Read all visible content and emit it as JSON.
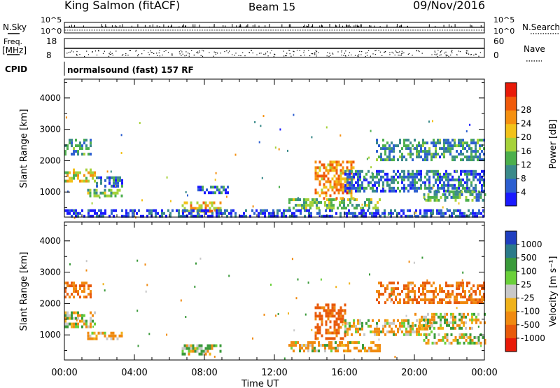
{
  "header": {
    "station": "King Salmon (fitACF)",
    "beam": "Beam 15",
    "date": "09/Nov/2016"
  },
  "strip": {
    "nsky_label": "N.Sky",
    "nsearch_label": "N.Search",
    "noise_ticks_top": "10^5",
    "noise_ticks_bottom": "10^0",
    "freq_label": "Freq.",
    "freq_unit": "[MHz]",
    "freq_ticks": [
      "18",
      "8"
    ],
    "nave_label": "Nave",
    "nave_ticks": [
      "60",
      "0"
    ],
    "cpid_label": "CPID",
    "cpid_text": "normalsound (fast) 157 RF"
  },
  "chart_data": [
    {
      "type": "heatmap",
      "title": "",
      "quantity": "Power",
      "xlabel": "",
      "ylabel": "Slant Range [km]",
      "xlim_hours": [
        0,
        24
      ],
      "ylim": [
        200,
        4600
      ],
      "y_ticks": [
        1000,
        2000,
        3000,
        4000
      ],
      "colorbar": {
        "label": "Power [dB]",
        "ticks": [
          "4",
          "8",
          "12",
          "16",
          "20",
          "24",
          "28"
        ],
        "colors": [
          "#1a1aff",
          "#2c5fd0",
          "#3a8a8a",
          "#4caf4c",
          "#a6d23a",
          "#f2c21a",
          "#f59010",
          "#f05a0a",
          "#e81a08"
        ]
      },
      "echo_regions": [
        {
          "t": [
            0.0,
            1.8
          ],
          "range": [
            1350,
            1750
          ],
          "value_db": 18
        },
        {
          "t": [
            1.8,
            3.3
          ],
          "range": [
            1200,
            1500
          ],
          "value_db": 8
        },
        {
          "t": [
            1.3,
            3.3
          ],
          "range": [
            850,
            1100
          ],
          "value_db": 14
        },
        {
          "t": [
            0.0,
            1.5
          ],
          "range": [
            2250,
            2700
          ],
          "value_db": 10
        },
        {
          "t": [
            6.7,
            8.9
          ],
          "range": [
            400,
            700
          ],
          "value_db": 20
        },
        {
          "t": [
            7.6,
            9.3
          ],
          "range": [
            1000,
            1200
          ],
          "value_db": 8
        },
        {
          "t": [
            12.8,
            18.0
          ],
          "range": [
            450,
            800
          ],
          "value_db": 14
        },
        {
          "t": [
            14.3,
            16.5
          ],
          "range": [
            800,
            2000
          ],
          "value_db": 22
        },
        {
          "t": [
            16.0,
            24.0
          ],
          "range": [
            1050,
            1700
          ],
          "value_db": 8
        },
        {
          "t": [
            20.5,
            24.0
          ],
          "range": [
            700,
            1050
          ],
          "value_db": 12
        },
        {
          "t": [
            17.8,
            24.0
          ],
          "range": [
            2000,
            2700
          ],
          "value_db": 10
        },
        {
          "t": [
            0.0,
            24.0
          ],
          "range": [
            200,
            450
          ],
          "value_db": 6
        }
      ]
    },
    {
      "type": "heatmap",
      "title": "",
      "quantity": "Velocity",
      "xlabel": "Time UT",
      "ylabel": "Slant Range [km]",
      "x_ticks": [
        "00:00",
        "04:00",
        "08:00",
        "12:00",
        "16:00",
        "20:00",
        "00:00"
      ],
      "xlim_hours": [
        0,
        24
      ],
      "ylim": [
        200,
        4600
      ],
      "y_ticks": [
        1000,
        2000,
        3000,
        4000
      ],
      "colorbar": {
        "label": "Velocity [m s⁻¹]",
        "ticks": [
          "1000",
          "500",
          "100",
          "25",
          "-25",
          "-100",
          "-500",
          "-1000"
        ],
        "colors": [
          "#1f3fc0",
          "#2a7a8a",
          "#3a9a3a",
          "#6ad03a",
          "#c8c8c8",
          "#f0b21a",
          "#f08a10",
          "#e85a0a",
          "#e81a08"
        ]
      },
      "echo_regions": [
        {
          "t": [
            0.0,
            1.8
          ],
          "range": [
            1300,
            1750
          ],
          "value_ms": 0
        },
        {
          "t": [
            1.3,
            3.3
          ],
          "range": [
            850,
            1100
          ],
          "value_ms": -100
        },
        {
          "t": [
            0.0,
            1.5
          ],
          "range": [
            2250,
            2700
          ],
          "value_ms": -300
        },
        {
          "t": [
            6.7,
            8.9
          ],
          "range": [
            400,
            700
          ],
          "value_ms": 60
        },
        {
          "t": [
            12.8,
            18.0
          ],
          "range": [
            450,
            800
          ],
          "value_ms": -60
        },
        {
          "t": [
            14.3,
            16.0
          ],
          "range": [
            900,
            2000
          ],
          "value_ms": -400
        },
        {
          "t": [
            16.0,
            21.0
          ],
          "range": [
            1000,
            1500
          ],
          "value_ms": -60
        },
        {
          "t": [
            20.0,
            24.0
          ],
          "range": [
            1200,
            1700
          ],
          "value_ms": 0
        },
        {
          "t": [
            20.5,
            24.0
          ],
          "range": [
            700,
            1050
          ],
          "value_ms": 0
        },
        {
          "t": [
            17.8,
            24.0
          ],
          "range": [
            2000,
            2700
          ],
          "value_ms": -300
        }
      ]
    }
  ]
}
